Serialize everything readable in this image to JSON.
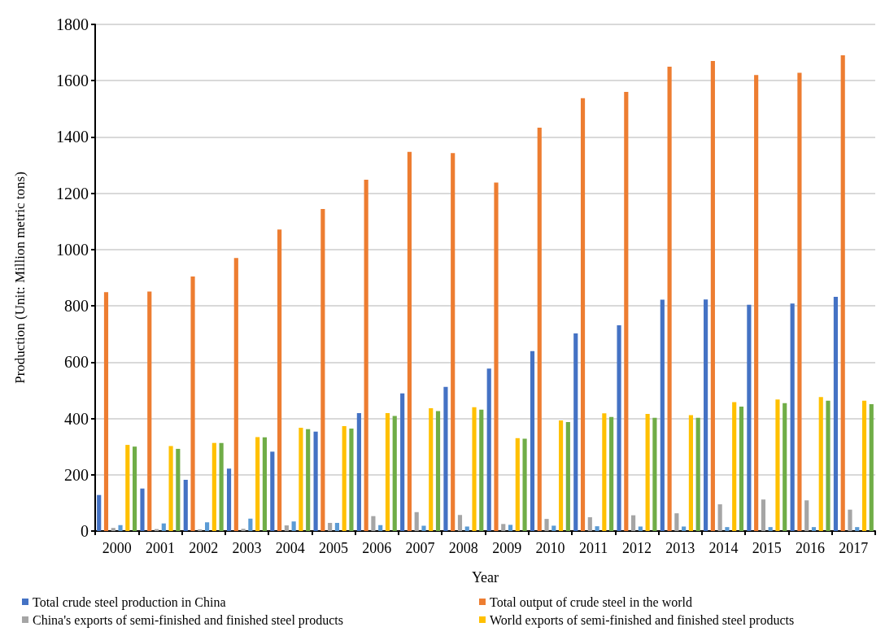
{
  "chart_data": {
    "type": "bar",
    "xlabel": "Year",
    "ylabel": "Production (Unit: Million metric tons)",
    "categories": [
      "2000",
      "2001",
      "2002",
      "2003",
      "2004",
      "2005",
      "2006",
      "2007",
      "2008",
      "2009",
      "2010",
      "2011",
      "2012",
      "2013",
      "2014",
      "2015",
      "2016",
      "2017"
    ],
    "series": [
      {
        "name": "Total crude steel production in China",
        "color": "#4472c4",
        "values": [
          128,
          151,
          182,
          222,
          282,
          353,
          419,
          489,
          512,
          577,
          639,
          702,
          731,
          822,
          823,
          804,
          808,
          832
        ]
      },
      {
        "name": "Total output of crude steel in the world",
        "color": "#ed7d31",
        "values": [
          849,
          851,
          904,
          970,
          1071,
          1144,
          1248,
          1347,
          1343,
          1238,
          1433,
          1538,
          1560,
          1650,
          1670,
          1620,
          1628,
          1690
        ]
      },
      {
        "name": "China's exports of semi-finished and finished steel products",
        "color": "#a5a5a5",
        "values": [
          11,
          7,
          6,
          8,
          20,
          29,
          53,
          67,
          57,
          25,
          43,
          49,
          56,
          63,
          95,
          112,
          109,
          76
        ]
      },
      {
        "color": "#5b9bd5",
        "values": [
          21,
          27,
          31,
          44,
          34,
          29,
          21,
          19,
          16,
          22,
          19,
          17,
          16,
          16,
          14,
          14,
          14,
          14
        ]
      },
      {
        "name": "World exports of semi-finished and finished steel products",
        "color": "#ffc000",
        "values": [
          306,
          302,
          313,
          334,
          367,
          373,
          419,
          436,
          440,
          330,
          393,
          418,
          416,
          412,
          458,
          467,
          476,
          463
        ]
      },
      {
        "color": "#70ad47",
        "values": [
          300,
          292,
          313,
          333,
          362,
          364,
          409,
          426,
          431,
          328,
          387,
          405,
          402,
          402,
          442,
          454,
          463,
          451
        ]
      }
    ],
    "ylim": [
      0,
      1800
    ],
    "yticks": [
      0,
      200,
      400,
      600,
      800,
      1000,
      1200,
      1400,
      1600,
      1800
    ],
    "grid": "y",
    "legend": "bottom"
  }
}
